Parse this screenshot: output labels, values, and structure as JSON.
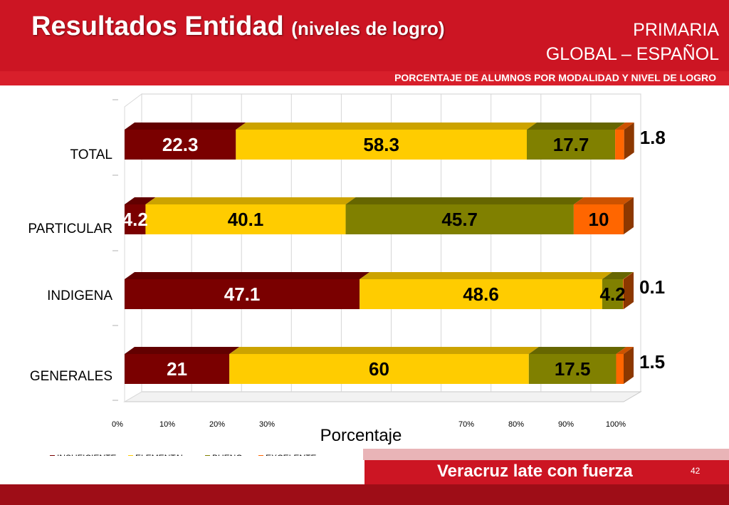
{
  "header": {
    "title_main": "Resultados Entidad",
    "title_sub": "(niveles de logro)",
    "level": "PRIMARIA",
    "subject": "GLOBAL – ESPAÑOL",
    "strip_text": "PORCENTAJE DE ALUMNOS POR MODALIDAD Y NIVEL DE LOGRO"
  },
  "footer": {
    "slogan": "Veracruz late con fuerza",
    "page_number": "42"
  },
  "colors": {
    "insuficiente": "#7a0000",
    "elemental": "#ffcc00",
    "bueno": "#808000",
    "excelente": "#ff6600",
    "header_red": "#cc1523"
  },
  "chart_data": {
    "type": "bar",
    "orientation": "horizontal",
    "stacked": true,
    "categories": [
      "TOTAL",
      "PARTICULAR",
      "INDIGENA",
      "GENERALES"
    ],
    "series": [
      {
        "name": "INSUFICIENTE",
        "values": [
          22.3,
          4.2,
          47.1,
          21
        ],
        "labels": [
          "22.3",
          "4.2",
          "47.1",
          "21"
        ]
      },
      {
        "name": "ELEMENTAL",
        "values": [
          58.3,
          40.1,
          48.6,
          60
        ],
        "labels": [
          "58.3",
          "40.1",
          "48.6",
          "60"
        ]
      },
      {
        "name": "BUENO",
        "values": [
          17.7,
          45.7,
          4.2,
          17.5
        ],
        "labels": [
          "17.7",
          "45.7",
          "4.2",
          "17.5"
        ]
      },
      {
        "name": "EXCELENTE",
        "values": [
          1.8,
          10,
          0.1,
          1.5
        ],
        "labels": [
          "1.8",
          "10",
          "0.1",
          "1.5"
        ]
      }
    ],
    "xlabel": "Porcentaje",
    "xlim": [
      0,
      100
    ],
    "x_ticks": [
      "0%",
      "10%",
      "20%",
      "30%",
      "",
      "",
      "",
      "70%",
      "80%",
      "90%",
      "100%"
    ],
    "grid": true,
    "legend_position": "bottom-left"
  }
}
